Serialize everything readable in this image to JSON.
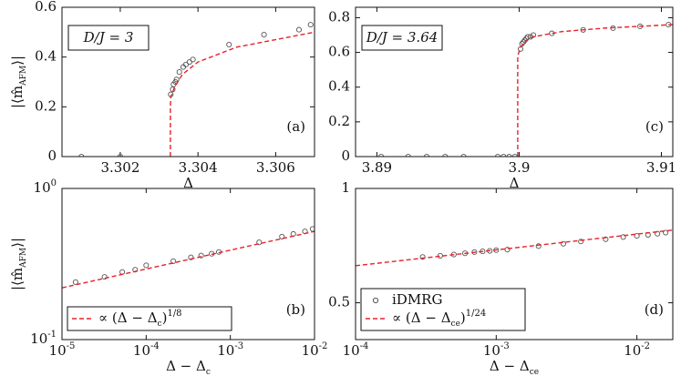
{
  "chart_data": [
    {
      "type": "scatter",
      "annotation": "D/J = 3",
      "panel_label": "(a)",
      "xlabel": "Δ",
      "ylabel": "|⟨m̂_{AFM}⟩|",
      "xlim": [
        3.3005,
        3.307
      ],
      "ylim": [
        0,
        0.6
      ],
      "xticks": [
        3.302,
        3.304,
        3.306
      ],
      "yticks": [
        0,
        0.2,
        0.4,
        0.6
      ],
      "series": [
        {
          "color": "#555555",
          "style": "marker",
          "x": [
            3.301,
            3.302,
            3.3033,
            3.30335,
            3.30337,
            3.30342,
            3.30345,
            3.30352,
            3.30362,
            3.30369,
            3.30378,
            3.30387,
            3.3048,
            3.3057,
            3.3066,
            3.3069
          ],
          "values": [
            0,
            0,
            0.25,
            0.27,
            0.29,
            0.3,
            0.31,
            0.34,
            0.36,
            0.37,
            0.38,
            0.39,
            0.45,
            0.49,
            0.51,
            0.53
          ]
        },
        {
          "color": "#e8212a",
          "style": "dashed",
          "x": [
            3.30329,
            3.30329,
            3.3033,
            3.3034,
            3.3036,
            3.304,
            3.305,
            3.306,
            3.307
          ],
          "values": [
            0,
            0.2,
            0.24,
            0.28,
            0.33,
            0.38,
            0.44,
            0.47,
            0.5
          ]
        }
      ]
    },
    {
      "type": "scatter",
      "annotation": "D/J = 3.64",
      "panel_label": "(c)",
      "xlabel": "Δ",
      "xlim": [
        3.8885,
        3.9108
      ],
      "ylim": [
        0,
        0.86
      ],
      "xticks": [
        3.89,
        3.9,
        3.91
      ],
      "yticks": [
        0,
        0.2,
        0.4,
        0.6,
        0.8
      ],
      "series": [
        {
          "color": "#555555",
          "style": "marker",
          "x": [
            3.8903,
            3.8922,
            3.8935,
            3.8948,
            3.8961,
            3.8985,
            3.8989,
            3.8993,
            3.8997,
            3.9001,
            3.9002,
            3.9003,
            3.9004,
            3.9005,
            3.9006,
            3.9008,
            3.901,
            3.9023,
            3.9045,
            3.9066,
            3.9085,
            3.9105
          ],
          "values": [
            0,
            0,
            0,
            0,
            0,
            0,
            0,
            0,
            0,
            0.62,
            0.65,
            0.66,
            0.67,
            0.68,
            0.69,
            0.69,
            0.7,
            0.71,
            0.73,
            0.74,
            0.75,
            0.76
          ]
        },
        {
          "color": "#e8212a",
          "style": "dashed",
          "x": [
            3.8999,
            3.8999,
            3.9001,
            3.9005,
            3.901,
            3.903,
            3.906,
            3.9108
          ],
          "values": [
            0,
            0.58,
            0.63,
            0.67,
            0.69,
            0.72,
            0.74,
            0.76
          ]
        }
      ]
    },
    {
      "type": "scatter",
      "panel_label": "(b)",
      "xlabel": "Δ − Δ_{c}",
      "ylabel": "|⟨m̂_{AFM}⟩|",
      "xscale": "log",
      "yscale": "log",
      "legend": "lower left",
      "xlim": [
        1e-05,
        0.01
      ],
      "ylim": [
        0.1,
        1
      ],
      "xticks": [
        {
          "value": 1e-05,
          "label": "10^{-5}"
        },
        {
          "value": 0.0001,
          "label": "10^{-4}"
        },
        {
          "value": 0.001,
          "label": "10^{-3}"
        },
        {
          "value": 0.01,
          "label": "10^{-2}"
        }
      ],
      "yticks": [
        {
          "value": 0.1,
          "label": "10^{-1}"
        },
        {
          "value": 1,
          "label": "10^{0}"
        }
      ],
      "series": [
        {
          "color": "#555555",
          "style": "marker",
          "x": [
            1.45e-05,
            3.2e-05,
            5.2e-05,
            7.4e-05,
            0.0001,
            0.00021,
            0.00034,
            0.00045,
            0.0006,
            0.00073,
            0.0022,
            0.0041,
            0.0056,
            0.0077,
            0.0095
          ],
          "values": [
            0.24,
            0.26,
            0.28,
            0.29,
            0.31,
            0.33,
            0.35,
            0.36,
            0.37,
            0.38,
            0.44,
            0.48,
            0.5,
            0.52,
            0.54
          ]
        },
        {
          "name": "∝ (Δ − Δ_{c})^{1/8}",
          "color": "#e8212a",
          "style": "dashed",
          "x": [
            1e-05,
            0.01
          ],
          "values": [
            0.22,
            0.52
          ]
        }
      ]
    },
    {
      "type": "scatter",
      "panel_label": "(d)",
      "xlabel": "Δ − Δ_{ce}",
      "xscale": "log",
      "yscale": "log",
      "legend": "lower left",
      "xlim": [
        0.0001,
        0.018
      ],
      "ylim": [
        0.4,
        1
      ],
      "xticks": [
        {
          "value": 0.0001,
          "label": "10^{-4}"
        },
        {
          "value": 0.001,
          "label": "10^{-3}"
        },
        {
          "value": 0.01,
          "label": "10^{-2}"
        }
      ],
      "yticks": [
        0.5,
        1
      ],
      "series": [
        {
          "name": "iDMRG",
          "color": "#555555",
          "style": "marker",
          "x": [
            0.0003,
            0.0004,
            0.0005,
            0.0006,
            0.0007,
            0.0008,
            0.0009,
            0.001,
            0.0012,
            0.002,
            0.003,
            0.004,
            0.006,
            0.008,
            0.01,
            0.012,
            0.014,
            0.016
          ],
          "values": [
            0.66,
            0.665,
            0.67,
            0.675,
            0.68,
            0.683,
            0.685,
            0.688,
            0.69,
            0.705,
            0.715,
            0.725,
            0.735,
            0.745,
            0.75,
            0.755,
            0.76,
            0.765
          ]
        },
        {
          "name": "∝ (Δ − Δ_{ce})^{1/24}",
          "color": "#e8212a",
          "style": "dashed",
          "x": [
            0.0001,
            0.018
          ],
          "values": [
            0.626,
            0.777
          ]
        }
      ]
    }
  ]
}
